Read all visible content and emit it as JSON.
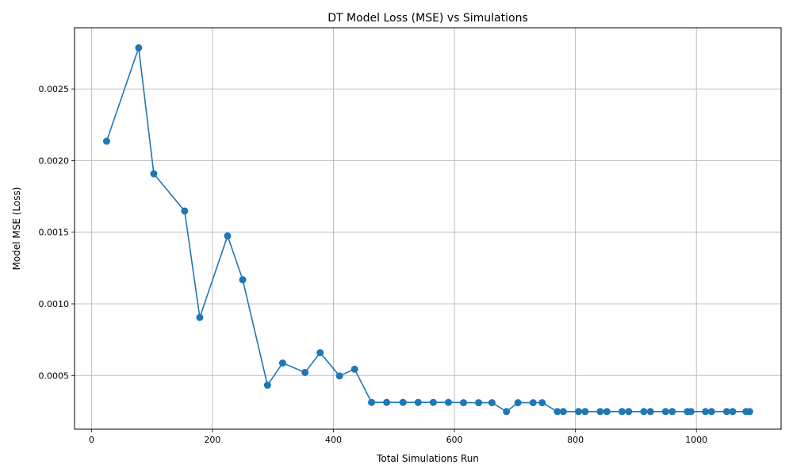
{
  "chart_data": {
    "type": "line",
    "title": "DT Model Loss (MSE) vs Simulations",
    "xlabel": "Total Simulations Run",
    "ylabel": "Model MSE (Loss)",
    "xlim": [
      -28,
      1140
    ],
    "ylim": [
      0.000125,
      0.002927
    ],
    "xticks": [
      0,
      200,
      400,
      600,
      800,
      1000
    ],
    "xtick_labels": [
      "0",
      "200",
      "400",
      "600",
      "800",
      "1000"
    ],
    "yticks": [
      0.0005,
      0.001,
      0.0015,
      0.002,
      0.0025
    ],
    "ytick_labels": [
      "0.0005",
      "0.0010",
      "0.0015",
      "0.0020",
      "0.0025"
    ],
    "grid": true,
    "series": [
      {
        "color": "#1f77b4",
        "marker": "circle",
        "x": [
          25,
          78,
          103,
          154,
          179,
          225,
          250,
          291,
          316,
          353,
          378,
          410,
          435,
          463,
          488,
          515,
          540,
          565,
          590,
          615,
          640,
          662,
          686,
          705,
          730,
          745,
          770,
          780,
          805,
          816,
          841,
          852,
          877,
          888,
          913,
          924,
          949,
          960,
          985,
          991,
          1015,
          1025,
          1050,
          1060,
          1082,
          1088
        ],
        "y": [
          0.002135,
          0.002787,
          0.001908,
          0.001648,
          0.000905,
          0.001474,
          0.001168,
          0.000432,
          0.000587,
          0.000521,
          0.000659,
          0.000497,
          0.000544,
          0.000312,
          0.000312,
          0.000312,
          0.000312,
          0.000312,
          0.000312,
          0.00031,
          0.00031,
          0.00031,
          0.000248,
          0.00031,
          0.00031,
          0.00031,
          0.000248,
          0.000248,
          0.000248,
          0.000248,
          0.000248,
          0.000248,
          0.000248,
          0.000248,
          0.000248,
          0.000248,
          0.000248,
          0.000248,
          0.000248,
          0.000248,
          0.000248,
          0.000248,
          0.000248,
          0.000248,
          0.000248,
          0.000248
        ]
      }
    ]
  }
}
